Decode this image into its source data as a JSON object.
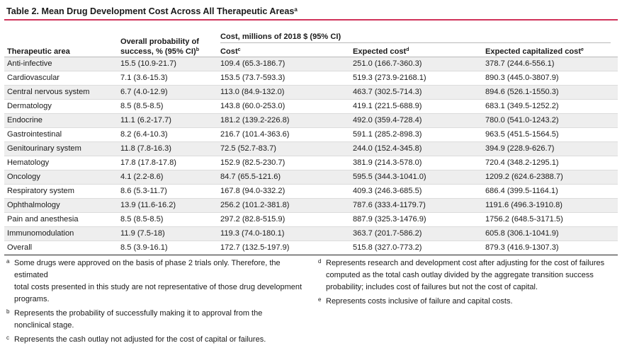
{
  "title": "Table 2. Mean Drug Development Cost Across All Therapeutic Areas",
  "title_sup": "a",
  "header": {
    "area": "Therapeutic area",
    "prob_line1": "Overall probability of",
    "prob_line2": "success, % (95% CI)",
    "prob_sup": "b",
    "cost_group": "Cost, millions of 2018 $ (95% CI)",
    "cost": "Cost",
    "cost_sup": "c",
    "expected": "Expected cost",
    "expected_sup": "d",
    "capitalized": "Expected capitalized cost",
    "capitalized_sup": "e"
  },
  "rows": [
    {
      "area": "Anti-infective",
      "prob": "15.5 (10.9-21.7)",
      "cost": "109.4 (65.3-186.7)",
      "expected": "251.0 (166.7-360.3)",
      "capitalized": "378.7 (244.6-556.1)"
    },
    {
      "area": "Cardiovascular",
      "prob": "7.1 (3.6-15.3)",
      "cost": "153.5 (73.7-593.3)",
      "expected": "519.3 (273.9-2168.1)",
      "capitalized": "890.3 (445.0-3807.9)"
    },
    {
      "area": "Central nervous system",
      "prob": "6.7 (4.0-12.9)",
      "cost": "113.0 (84.9-132.0)",
      "expected": "463.7 (302.5-714.3)",
      "capitalized": "894.6 (526.1-1550.3)"
    },
    {
      "area": "Dermatology",
      "prob": "8.5 (8.5-8.5)",
      "cost": "143.8 (60.0-253.0)",
      "expected": "419.1 (221.5-688.9)",
      "capitalized": "683.1 (349.5-1252.2)"
    },
    {
      "area": "Endocrine",
      "prob": "11.1 (6.2-17.7)",
      "cost": "181.2 (139.2-226.8)",
      "expected": "492.0 (359.4-728.4)",
      "capitalized": "780.0 (541.0-1243.2)"
    },
    {
      "area": "Gastrointestinal",
      "prob": "8.2 (6.4-10.3)",
      "cost": "216.7 (101.4-363.6)",
      "expected": "591.1 (285.2-898.3)",
      "capitalized": "963.5 (451.5-1564.5)"
    },
    {
      "area": "Genitourinary system",
      "prob": "11.8 (7.8-16.3)",
      "cost": "72.5 (52.7-83.7)",
      "expected": "244.0 (152.4-345.8)",
      "capitalized": "394.9 (228.9-626.7)"
    },
    {
      "area": "Hematology",
      "prob": "17.8 (17.8-17.8)",
      "cost": "152.9 (82.5-230.7)",
      "expected": "381.9 (214.3-578.0)",
      "capitalized": "720.4 (348.2-1295.1)"
    },
    {
      "area": "Oncology",
      "prob": "4.1 (2.2-8.6)",
      "cost": "84.7 (65.5-121.6)",
      "expected": "595.5 (344.3-1041.0)",
      "capitalized": "1209.2 (624.6-2388.7)"
    },
    {
      "area": "Respiratory system",
      "prob": "8.6 (5.3-11.7)",
      "cost": "167.8 (94.0-332.2)",
      "expected": "409.3 (246.3-685.5)",
      "capitalized": "686.4 (399.5-1164.1)"
    },
    {
      "area": "Ophthalmology",
      "prob": "13.9 (11.6-16.2)",
      "cost": "256.2 (101.2-381.8)",
      "expected": "787.6 (333.4-1179.7)",
      "capitalized": "1191.6 (496.3-1910.8)"
    },
    {
      "area": "Pain and anesthesia",
      "prob": "8.5 (8.5-8.5)",
      "cost": "297.2 (82.8-515.9)",
      "expected": "887.9 (325.3-1476.9)",
      "capitalized": "1756.2 (648.5-3171.5)"
    },
    {
      "area": "Immunomodulation",
      "prob": "11.9 (7.5-18)",
      "cost": "119.3 (74.0-180.1)",
      "expected": "363.7 (201.7-586.2)",
      "capitalized": "605.8 (306.1-1041.9)"
    },
    {
      "area": "Overall",
      "prob": "8.5 (3.9-16.1)",
      "cost": "172.7 (132.5-197.9)",
      "expected": "515.8 (327.0-773.2)",
      "capitalized": "879.3 (416.9-1307.3)"
    }
  ],
  "notes_left": [
    {
      "mark": "a",
      "lines": [
        "Some drugs were approved on the basis of phase 2 trials only. Therefore, the estimated",
        "total costs presented in this study are not representative of those drug development",
        "programs."
      ]
    },
    {
      "mark": "b",
      "lines": [
        "Represents the probability of successfully making it to approval from the",
        "nonclinical stage."
      ]
    },
    {
      "mark": "c",
      "lines": [
        "Represents the cash outlay not adjusted for the cost of capital or failures."
      ]
    }
  ],
  "notes_right": [
    {
      "mark": "d",
      "lines": [
        "Represents research and development cost after adjusting for the cost of failures",
        "computed as the total cash outlay divided by the aggregate transition success",
        "probability; includes cost of failures but not the cost of capital."
      ]
    },
    {
      "mark": "e",
      "lines": [
        "Represents costs inclusive of failure and capital costs."
      ]
    }
  ],
  "colors": {
    "accent_rule": "#d0335a",
    "stripe": "#eeeeee"
  }
}
